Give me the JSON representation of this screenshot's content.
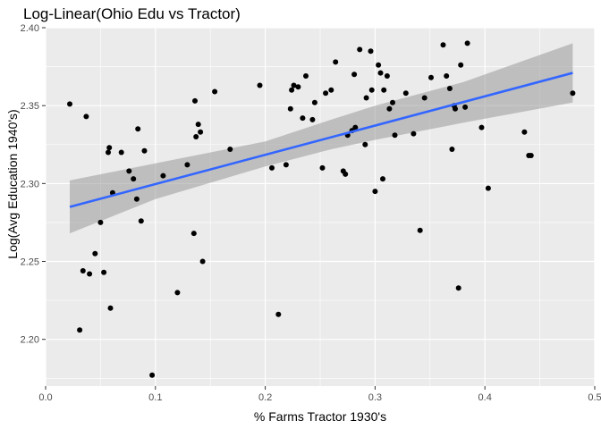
{
  "chart_data": {
    "type": "scatter",
    "title": "Log-Linear(Ohio Edu vs Tractor)",
    "xlabel": "% Farms Tractor 1930's",
    "ylabel": "Log(Avg Education 1940's)",
    "xlim": [
      0.0,
      0.5
    ],
    "ylim": [
      2.17,
      2.4
    ],
    "x_ticks": [
      0.0,
      0.1,
      0.2,
      0.3,
      0.4,
      0.5
    ],
    "x_tick_labels": [
      "0.0",
      "0.1",
      "0.2",
      "0.3",
      "0.4",
      "0.5"
    ],
    "y_ticks": [
      2.2,
      2.25,
      2.3,
      2.35,
      2.4
    ],
    "y_tick_labels": [
      "2.20",
      "2.25",
      "2.30",
      "2.35",
      "2.40"
    ],
    "grid": true,
    "points": [
      [
        0.022,
        2.351
      ],
      [
        0.031,
        2.206
      ],
      [
        0.034,
        2.244
      ],
      [
        0.037,
        2.343
      ],
      [
        0.04,
        2.242
      ],
      [
        0.045,
        2.255
      ],
      [
        0.05,
        2.275
      ],
      [
        0.053,
        2.243
      ],
      [
        0.057,
        2.32
      ],
      [
        0.058,
        2.323
      ],
      [
        0.059,
        2.22
      ],
      [
        0.061,
        2.294
      ],
      [
        0.069,
        2.32
      ],
      [
        0.076,
        2.308
      ],
      [
        0.08,
        2.303
      ],
      [
        0.083,
        2.29
      ],
      [
        0.084,
        2.335
      ],
      [
        0.087,
        2.276
      ],
      [
        0.09,
        2.321
      ],
      [
        0.097,
        2.177
      ],
      [
        0.107,
        2.305
      ],
      [
        0.12,
        2.23
      ],
      [
        0.129,
        2.312
      ],
      [
        0.135,
        2.268
      ],
      [
        0.136,
        2.353
      ],
      [
        0.137,
        2.33
      ],
      [
        0.139,
        2.338
      ],
      [
        0.141,
        2.333
      ],
      [
        0.143,
        2.25
      ],
      [
        0.154,
        2.359
      ],
      [
        0.168,
        2.322
      ],
      [
        0.195,
        2.363
      ],
      [
        0.206,
        2.31
      ],
      [
        0.212,
        2.216
      ],
      [
        0.219,
        2.312
      ],
      [
        0.223,
        2.348
      ],
      [
        0.224,
        2.36
      ],
      [
        0.226,
        2.363
      ],
      [
        0.23,
        2.362
      ],
      [
        0.234,
        2.342
      ],
      [
        0.237,
        2.369
      ],
      [
        0.243,
        2.341
      ],
      [
        0.245,
        2.352
      ],
      [
        0.252,
        2.31
      ],
      [
        0.255,
        2.358
      ],
      [
        0.26,
        2.36
      ],
      [
        0.264,
        2.378
      ],
      [
        0.271,
        2.308
      ],
      [
        0.273,
        2.306
      ],
      [
        0.275,
        2.331
      ],
      [
        0.279,
        2.334
      ],
      [
        0.281,
        2.37
      ],
      [
        0.282,
        2.336
      ],
      [
        0.286,
        2.386
      ],
      [
        0.291,
        2.325
      ],
      [
        0.292,
        2.355
      ],
      [
        0.296,
        2.385
      ],
      [
        0.297,
        2.36
      ],
      [
        0.3,
        2.295
      ],
      [
        0.303,
        2.376
      ],
      [
        0.305,
        2.371
      ],
      [
        0.307,
        2.303
      ],
      [
        0.308,
        2.36
      ],
      [
        0.311,
        2.369
      ],
      [
        0.313,
        2.348
      ],
      [
        0.316,
        2.352
      ],
      [
        0.318,
        2.331
      ],
      [
        0.328,
        2.358
      ],
      [
        0.335,
        2.332
      ],
      [
        0.341,
        2.27
      ],
      [
        0.345,
        2.355
      ],
      [
        0.351,
        2.368
      ],
      [
        0.362,
        2.389
      ],
      [
        0.365,
        2.369
      ],
      [
        0.368,
        2.361
      ],
      [
        0.37,
        2.322
      ],
      [
        0.372,
        2.35
      ],
      [
        0.373,
        2.348
      ],
      [
        0.376,
        2.233
      ],
      [
        0.378,
        2.376
      ],
      [
        0.382,
        2.349
      ],
      [
        0.384,
        2.39
      ],
      [
        0.397,
        2.336
      ],
      [
        0.403,
        2.297
      ],
      [
        0.436,
        2.333
      ],
      [
        0.44,
        2.318
      ],
      [
        0.442,
        2.318
      ],
      [
        0.48,
        2.358
      ]
    ],
    "regression": {
      "x_range": [
        0.022,
        0.48
      ],
      "line": [
        [
          0.022,
          2.285
        ],
        [
          0.48,
          2.371
        ]
      ],
      "ci_upper": [
        [
          0.022,
          2.302
        ],
        [
          0.1,
          2.313
        ],
        [
          0.2,
          2.327
        ],
        [
          0.26,
          2.341
        ],
        [
          0.3,
          2.35
        ],
        [
          0.38,
          2.365
        ],
        [
          0.48,
          2.39
        ]
      ],
      "ci_lower": [
        [
          0.022,
          2.268
        ],
        [
          0.1,
          2.29
        ],
        [
          0.2,
          2.311
        ],
        [
          0.26,
          2.322
        ],
        [
          0.3,
          2.328
        ],
        [
          0.38,
          2.339
        ],
        [
          0.48,
          2.352
        ]
      ]
    },
    "colors": {
      "panel": "#ebebeb",
      "grid": "#ffffff",
      "point": "#000000",
      "line": "#3366ff",
      "band": "#999999"
    }
  }
}
